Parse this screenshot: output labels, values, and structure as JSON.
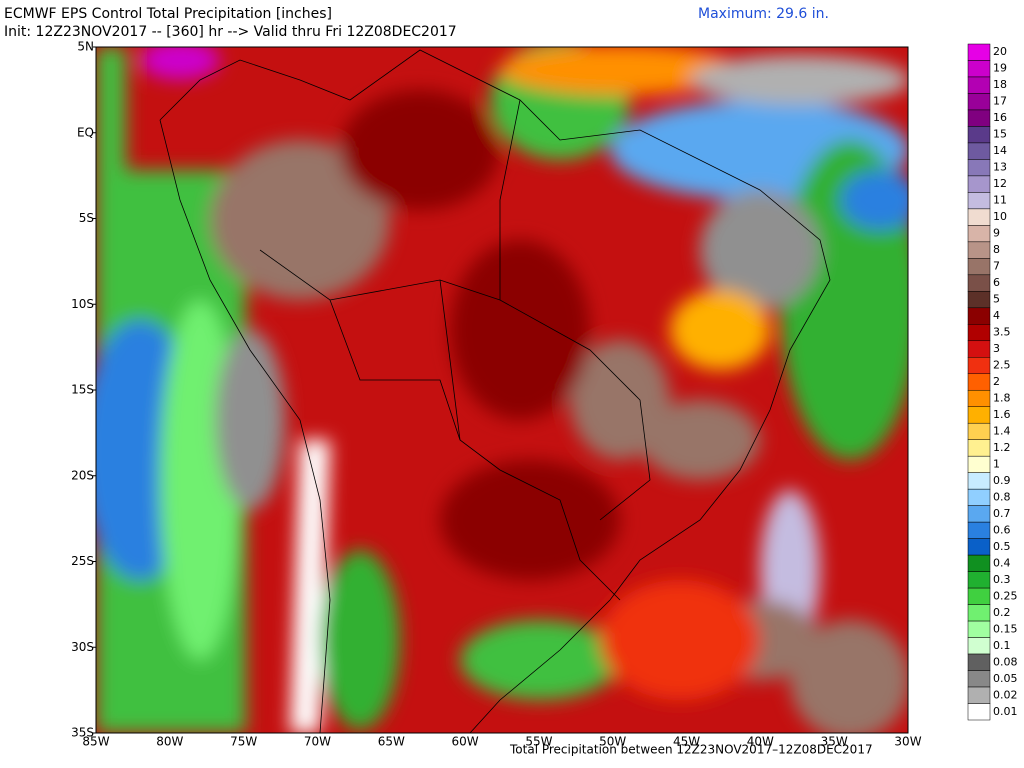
{
  "header": {
    "title": "ECMWF EPS Control Total Precipitation [inches]",
    "init": "Init: 12Z23NOV2017 -- [360] hr --> Valid thru Fri 12Z08DEC2017",
    "maximum": "Maximum: 29.6 in."
  },
  "axes": {
    "lat_labels": [
      "5N",
      "EQ",
      "5S",
      "10S",
      "15S",
      "20S",
      "25S",
      "30S",
      "35S"
    ],
    "lon_labels": [
      "85W",
      "80W",
      "75W",
      "70W",
      "65W",
      "60W",
      "55W",
      "50W",
      "45W",
      "40W",
      "35W",
      "30W"
    ]
  },
  "colorbar": {
    "levels": [
      {
        "label": "20",
        "color": "#e600e6"
      },
      {
        "label": "19",
        "color": "#cc00cc"
      },
      {
        "label": "18",
        "color": "#b300b3"
      },
      {
        "label": "17",
        "color": "#990099"
      },
      {
        "label": "16",
        "color": "#800080"
      },
      {
        "label": "15",
        "color": "#5a3a8a"
      },
      {
        "label": "14",
        "color": "#6e5aa0"
      },
      {
        "label": "13",
        "color": "#8878b8"
      },
      {
        "label": "12",
        "color": "#a696cc"
      },
      {
        "label": "11",
        "color": "#c4bce0"
      },
      {
        "label": "10",
        "color": "#f0dcd0"
      },
      {
        "label": "9",
        "color": "#d8b4a8"
      },
      {
        "label": "8",
        "color": "#b89488"
      },
      {
        "label": "7",
        "color": "#987468"
      },
      {
        "label": "6",
        "color": "#7a5048"
      },
      {
        "label": "5",
        "color": "#5c3028"
      },
      {
        "label": "4",
        "color": "#8b0000"
      },
      {
        "label": "3.5",
        "color": "#b00000"
      },
      {
        "label": "3",
        "color": "#d41010"
      },
      {
        "label": "2.5",
        "color": "#f03010"
      },
      {
        "label": "2",
        "color": "#ff6000"
      },
      {
        "label": "1.8",
        "color": "#ff9000"
      },
      {
        "label": "1.6",
        "color": "#ffb000"
      },
      {
        "label": "1.4",
        "color": "#ffd050"
      },
      {
        "label": "1.2",
        "color": "#fff090"
      },
      {
        "label": "1",
        "color": "#ffffd0"
      },
      {
        "label": "0.9",
        "color": "#c8ecff"
      },
      {
        "label": "0.8",
        "color": "#90cfff"
      },
      {
        "label": "0.7",
        "color": "#5aa8f0"
      },
      {
        "label": "0.6",
        "color": "#2a80e0"
      },
      {
        "label": "0.5",
        "color": "#0a60c8"
      },
      {
        "label": "0.4",
        "color": "#109020"
      },
      {
        "label": "0.3",
        "color": "#20b030"
      },
      {
        "label": "0.25",
        "color": "#40d040"
      },
      {
        "label": "0.2",
        "color": "#70f070"
      },
      {
        "label": "0.15",
        "color": "#a0ffa0"
      },
      {
        "label": "0.1",
        "color": "#d0ffd0"
      },
      {
        "label": "0.08",
        "color": "#606060"
      },
      {
        "label": "0.05",
        "color": "#888888"
      },
      {
        "label": "0.02",
        "color": "#b0b0b0"
      },
      {
        "label": "0.01",
        "color": "#ffffff"
      }
    ]
  },
  "footer": "Total Precipitation between 12Z23NOV2017–12Z08DEC2017"
}
